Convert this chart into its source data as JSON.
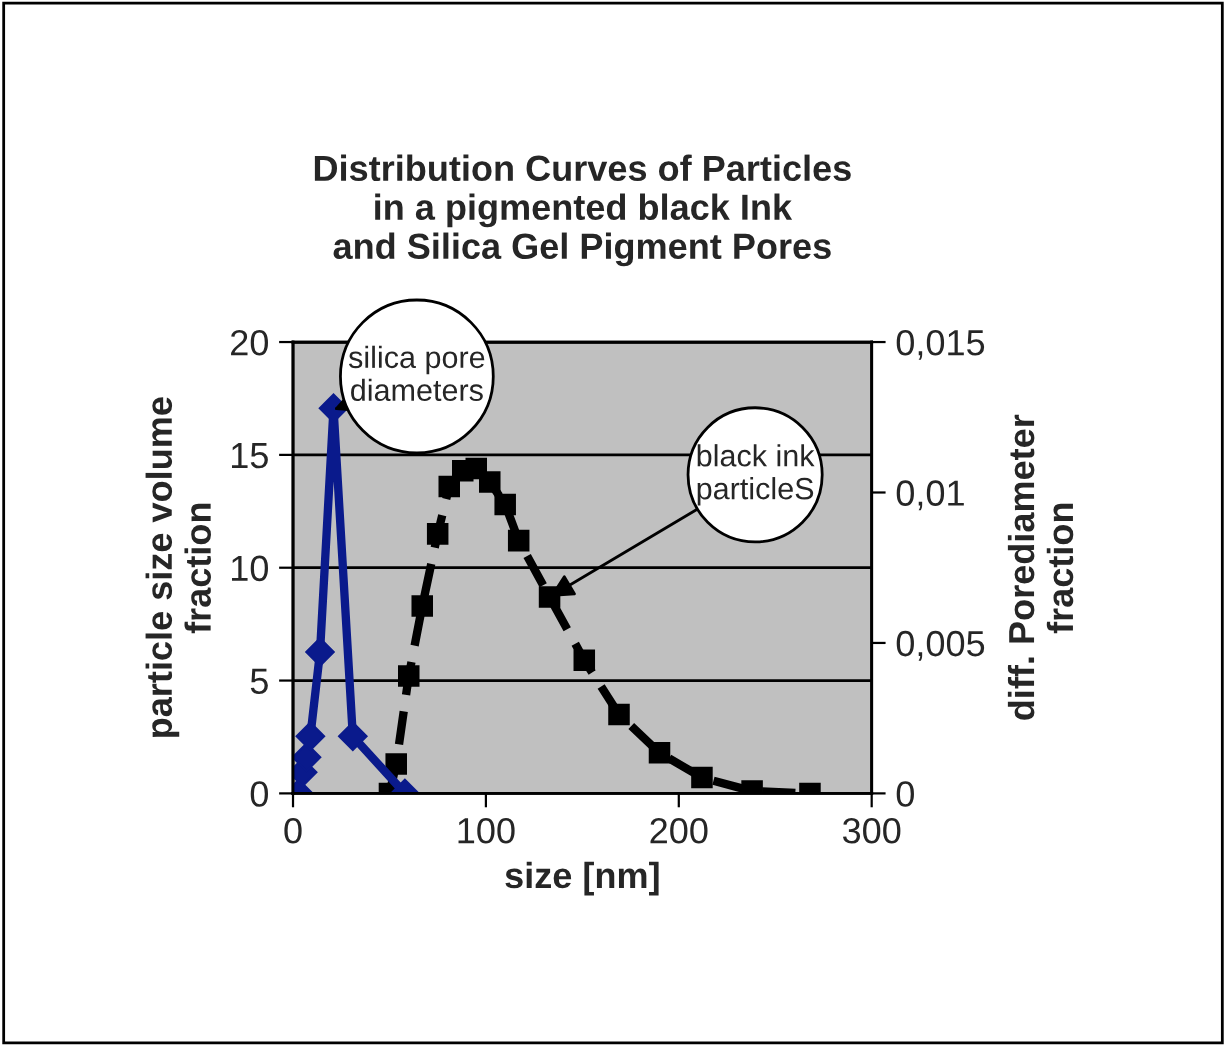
{
  "chart_data": {
    "type": "line",
    "title": "Distribution Curves of Particles\nin a pigmented black Ink\nand Silica Gel Pigment Pores",
    "xlabel": "size [nm]",
    "ylabel": "particle size volume\nfraction",
    "y2label": "diff. Porediameter\nfraction",
    "series": [
      {
        "color": "#0a1a8c",
        "marker": "diamond",
        "line_style": "solid",
        "axis": "y2",
        "x": [
          3,
          5,
          7,
          9,
          14,
          21,
          31,
          58
        ],
        "values": [
          0,
          0.0007,
          0.0012,
          0.0019,
          0.0047,
          0.0128,
          0.0019,
          0
        ]
      },
      {
        "color": "#000000",
        "marker": "square",
        "line_style": "dashed",
        "x": [
          50,
          53.5,
          60,
          67,
          75,
          81,
          88,
          95,
          102,
          110,
          117,
          133,
          151,
          169,
          190,
          212,
          238,
          268
        ],
        "values": [
          0,
          1.3,
          5.2,
          8.3,
          11.5,
          13.6,
          14.3,
          14.4,
          13.8,
          12.8,
          11.2,
          8.7,
          5.9,
          3.5,
          1.8,
          0.7,
          0.1,
          0
        ]
      }
    ],
    "annotations": [
      {
        "text": "silica pore\ndiameters",
        "x": 21,
        "y": 17
      },
      {
        "text": "black ink\nparticleS",
        "x": 133,
        "y": 8.7
      }
    ],
    "xlim": [
      0,
      300
    ],
    "xticks": [
      0,
      100,
      200,
      300
    ],
    "ylim": [
      0,
      20
    ],
    "yticks": [
      0,
      5,
      10,
      15,
      20
    ],
    "y2lim": [
      0,
      0.015
    ],
    "y2ticks": [
      0,
      {
        "value": 0.005,
        "label": "0,005"
      },
      {
        "value": 0.01,
        "label": "0,01"
      },
      {
        "value": 0.015,
        "label": "0,015"
      }
    ],
    "grid": "y",
    "legend": false
  }
}
